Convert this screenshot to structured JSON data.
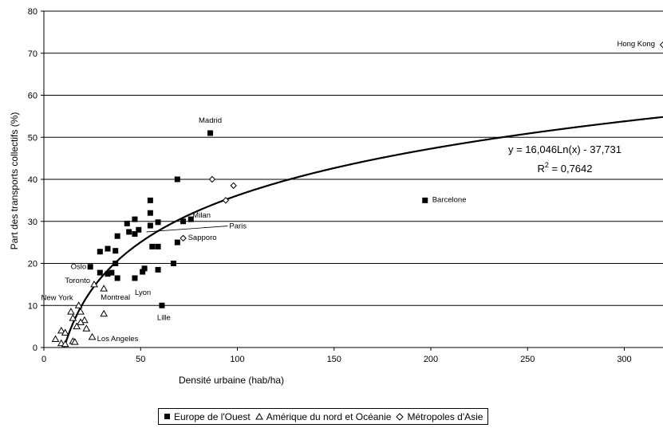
{
  "chart_data": {
    "type": "scatter",
    "title": "",
    "xlabel": "Densité urbaine (hab/ha)",
    "ylabel": "Part des transports collectifs (%)",
    "xlim": [
      0,
      320
    ],
    "ylim": [
      0,
      80
    ],
    "x_ticks": [
      "0",
      "50",
      "100",
      "150",
      "200",
      "250",
      "300"
    ],
    "y_ticks": [
      "0",
      "10",
      "20",
      "30",
      "40",
      "50",
      "60",
      "70",
      "80"
    ],
    "grid": "horizontal",
    "legend_position": "bottom",
    "series": [
      {
        "name": "Europe de l'Ouest",
        "marker": "square",
        "points": [
          {
            "x": 86,
            "y": 51,
            "label": "Madrid"
          },
          {
            "x": 197,
            "y": 35,
            "label": "Barcelone"
          },
          {
            "x": 69,
            "y": 40
          },
          {
            "x": 55,
            "y": 35
          },
          {
            "x": 55,
            "y": 32
          },
          {
            "x": 47,
            "y": 30.5
          },
          {
            "x": 43,
            "y": 29.5
          },
          {
            "x": 55,
            "y": 29
          },
          {
            "x": 59,
            "y": 29.8
          },
          {
            "x": 72,
            "y": 30
          },
          {
            "x": 76,
            "y": 30.5,
            "label": "Milan"
          },
          {
            "x": 49,
            "y": 28
          },
          {
            "x": 44,
            "y": 27.5
          },
          {
            "x": 47,
            "y": 27
          },
          {
            "x": 38,
            "y": 26.5
          },
          {
            "x": 69,
            "y": 25
          },
          {
            "x": 33,
            "y": 23.5
          },
          {
            "x": 37,
            "y": 23
          },
          {
            "x": 29,
            "y": 22.8
          },
          {
            "x": 56,
            "y": 24
          },
          {
            "x": 59,
            "y": 24
          },
          {
            "x": 67,
            "y": 20
          },
          {
            "x": 24,
            "y": 19.2
          },
          {
            "x": 37,
            "y": 20
          },
          {
            "x": 29,
            "y": 17.8
          },
          {
            "x": 35,
            "y": 17.8
          },
          {
            "x": 33,
            "y": 17.5
          },
          {
            "x": 52,
            "y": 18.8
          },
          {
            "x": 51,
            "y": 18
          },
          {
            "x": 59,
            "y": 18.5
          },
          {
            "x": 38,
            "y": 16.5
          },
          {
            "x": 47,
            "y": 16.5,
            "label": "Lyon"
          },
          {
            "x": 61,
            "y": 10,
            "label": "Lille"
          }
        ]
      },
      {
        "name": "Amérique du nord et Océanie",
        "marker": "triangle",
        "points": [
          {
            "x": 26,
            "y": 15,
            "label": "Toronto"
          },
          {
            "x": 31,
            "y": 14,
            "label": "Montreal"
          },
          {
            "x": 18,
            "y": 10,
            "label": "New York"
          },
          {
            "x": 31,
            "y": 8
          },
          {
            "x": 14,
            "y": 8.5
          },
          {
            "x": 19,
            "y": 8.5
          },
          {
            "x": 15,
            "y": 7
          },
          {
            "x": 21,
            "y": 6.5
          },
          {
            "x": 19,
            "y": 6
          },
          {
            "x": 17,
            "y": 5
          },
          {
            "x": 22,
            "y": 4.5
          },
          {
            "x": 9,
            "y": 4
          },
          {
            "x": 11,
            "y": 3.5
          },
          {
            "x": 25,
            "y": 2.5,
            "label": "Los Angeles"
          },
          {
            "x": 6,
            "y": 2
          },
          {
            "x": 15,
            "y": 1.5
          },
          {
            "x": 16,
            "y": 1.3
          },
          {
            "x": 9,
            "y": 1
          },
          {
            "x": 11,
            "y": 0.8
          }
        ]
      },
      {
        "name": "Métropoles d'Asie",
        "marker": "diamond",
        "points": [
          {
            "x": 320,
            "y": 72,
            "label": "Hong Kong"
          },
          {
            "x": 87,
            "y": 40
          },
          {
            "x": 98,
            "y": 38.5
          },
          {
            "x": 94,
            "y": 35
          },
          {
            "x": 72,
            "y": 26,
            "label": "Sapporo"
          }
        ]
      }
    ],
    "annotations": [
      {
        "text": "Oslo",
        "x": 24,
        "y": 19.2
      },
      {
        "text": "Paris",
        "x": 53,
        "y": 27.5
      }
    ],
    "trendline": {
      "type": "logarithmic",
      "a": 16.046,
      "b": -37.731,
      "equation": "y = 16,046Ln(x) - 37,731",
      "r2_prefix": "R",
      "r2_exp": "2",
      "r2_value": " = 0,7642"
    }
  }
}
